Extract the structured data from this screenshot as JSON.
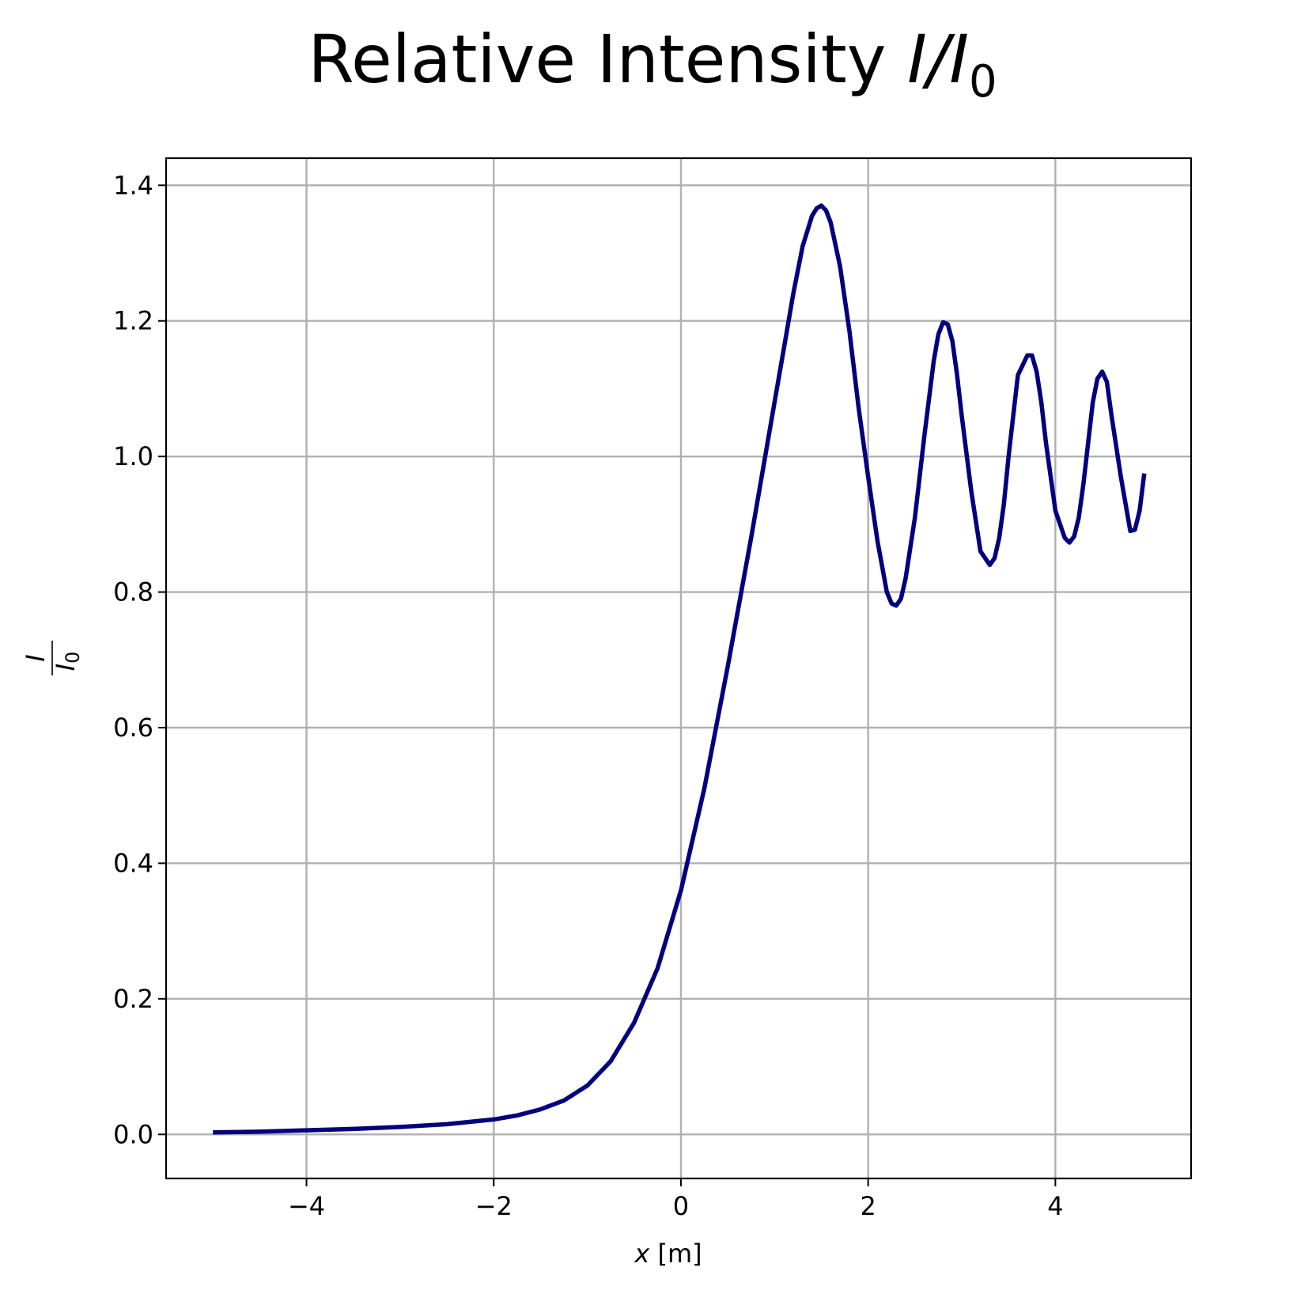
{
  "chart_data": {
    "type": "line",
    "title": {
      "prefix": "Relative Intensity ",
      "italic": "I/I",
      "subscript": "0"
    },
    "xlabel": {
      "italic": "x",
      "rest": " [m]"
    },
    "ylabel": {
      "numerator": "I",
      "denominator": "I",
      "denominator_subscript": "0"
    },
    "xlim": [
      -5.5,
      5.45
    ],
    "ylim": [
      -0.065,
      1.44
    ],
    "xticks": [
      -4,
      -2,
      0,
      2,
      4
    ],
    "xtick_labels": [
      "−4",
      "−2",
      "0",
      "2",
      "4"
    ],
    "yticks": [
      0.0,
      0.2,
      0.4,
      0.6,
      0.8,
      1.0,
      1.2,
      1.4
    ],
    "ytick_labels": [
      "0.0",
      "0.2",
      "0.4",
      "0.6",
      "0.8",
      "1.0",
      "1.2",
      "1.4"
    ],
    "grid": true,
    "series": [
      {
        "color": "#00007f",
        "x": [
          -5.0,
          -4.5,
          -4.0,
          -3.5,
          -3.0,
          -2.5,
          -2.0,
          -1.75,
          -1.5,
          -1.25,
          -1.0,
          -0.75,
          -0.5,
          -0.25,
          0.0,
          0.25,
          0.5,
          0.75,
          1.0,
          1.1,
          1.2,
          1.3,
          1.4,
          1.45,
          1.5,
          1.55,
          1.6,
          1.7,
          1.8,
          1.9,
          2.0,
          2.1,
          2.2,
          2.25,
          2.3,
          2.35,
          2.4,
          2.5,
          2.6,
          2.7,
          2.75,
          2.8,
          2.85,
          2.9,
          2.95,
          3.0,
          3.1,
          3.2,
          3.3,
          3.35,
          3.4,
          3.45,
          3.5,
          3.6,
          3.7,
          3.75,
          3.8,
          3.85,
          3.9,
          4.0,
          4.1,
          4.15,
          4.2,
          4.25,
          4.3,
          4.4,
          4.45,
          4.5,
          4.55,
          4.6,
          4.7,
          4.8,
          4.85,
          4.9,
          4.95
        ],
        "y": [
          0.003,
          0.004,
          0.006,
          0.008,
          0.011,
          0.015,
          0.022,
          0.028,
          0.037,
          0.05,
          0.072,
          0.108,
          0.165,
          0.245,
          0.36,
          0.51,
          0.69,
          0.88,
          1.08,
          1.16,
          1.24,
          1.31,
          1.355,
          1.366,
          1.37,
          1.363,
          1.345,
          1.28,
          1.185,
          1.07,
          0.97,
          0.875,
          0.8,
          0.783,
          0.78,
          0.79,
          0.82,
          0.91,
          1.03,
          1.14,
          1.18,
          1.198,
          1.195,
          1.17,
          1.12,
          1.06,
          0.95,
          0.86,
          0.84,
          0.85,
          0.88,
          0.93,
          1.0,
          1.12,
          1.149,
          1.149,
          1.125,
          1.08,
          1.02,
          0.92,
          0.88,
          0.873,
          0.882,
          0.91,
          0.96,
          1.08,
          1.115,
          1.125,
          1.11,
          1.06,
          0.97,
          0.89,
          0.892,
          0.92,
          0.975
        ]
      }
    ]
  }
}
